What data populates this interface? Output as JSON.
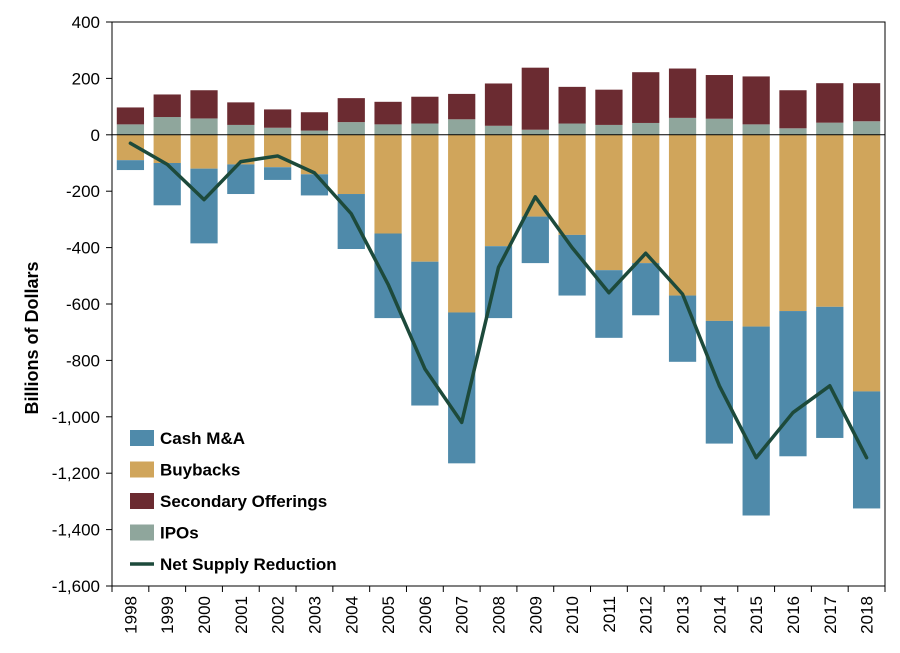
{
  "chart_data": {
    "type": "bar",
    "stacked": true,
    "ylabel": "Billions of Dollars",
    "xlabel": "",
    "ylim": [
      -1600,
      400
    ],
    "y_ticks": [
      400,
      200,
      0,
      -200,
      -400,
      -600,
      -800,
      -1000,
      -1200,
      -1400,
      -1600
    ],
    "y_tick_labels": [
      "400",
      "200",
      "0",
      "-200",
      "-400",
      "-600",
      "-800",
      "-1,000",
      "-1,200",
      "-1,400",
      "-1,600"
    ],
    "categories": [
      "1998",
      "1999",
      "2000",
      "2001",
      "2002",
      "2003",
      "2004",
      "2005",
      "2006",
      "2007",
      "2008",
      "2009",
      "2010",
      "2011",
      "2012",
      "2013",
      "2014",
      "2015",
      "2016",
      "2017",
      "2018"
    ],
    "series": [
      {
        "name": "Cash M&A",
        "color": "#4f8aaa",
        "kind": "bar",
        "values": [
          -35,
          -150,
          -265,
          -105,
          -45,
          -75,
          -195,
          -300,
          -510,
          -535,
          -255,
          -165,
          -215,
          -240,
          -185,
          -235,
          -435,
          -670,
          -515,
          -465,
          -415
        ]
      },
      {
        "name": "Buybacks",
        "color": "#d0a55b",
        "kind": "bar",
        "values": [
          -90,
          -100,
          -120,
          -105,
          -115,
          -140,
          -210,
          -350,
          -450,
          -630,
          -395,
          -290,
          -355,
          -480,
          -455,
          -570,
          -660,
          -680,
          -625,
          -610,
          -910
        ]
      },
      {
        "name": "Secondary Offerings",
        "color": "#6b2b31",
        "kind": "bar",
        "values": [
          60,
          80,
          100,
          80,
          65,
          65,
          85,
          80,
          95,
          90,
          150,
          220,
          130,
          125,
          180,
          175,
          155,
          170,
          135,
          140,
          135
        ]
      },
      {
        "name": "IPOs",
        "color": "#8fa69c",
        "kind": "bar",
        "values": [
          37,
          63,
          58,
          35,
          25,
          15,
          45,
          37,
          40,
          55,
          32,
          18,
          40,
          35,
          42,
          60,
          57,
          37,
          23,
          43,
          48
        ]
      },
      {
        "name": "Net Supply Reduction",
        "color": "#1d4a3b",
        "kind": "line",
        "values": [
          -30,
          -105,
          -230,
          -95,
          -75,
          -135,
          -280,
          -530,
          -830,
          -1020,
          -470,
          -220,
          -400,
          -560,
          -420,
          -565,
          -890,
          -1145,
          -985,
          -890,
          -1145
        ]
      }
    ],
    "legend": {
      "position": "bottom-left",
      "items": [
        {
          "label": "Cash M&A",
          "color": "#4f8aaa",
          "shape": "box"
        },
        {
          "label": "Buybacks",
          "color": "#d0a55b",
          "shape": "box"
        },
        {
          "label": "Secondary Offerings",
          "color": "#6b2b31",
          "shape": "box"
        },
        {
          "label": "IPOs",
          "color": "#8fa69c",
          "shape": "box"
        },
        {
          "label": "Net Supply Reduction",
          "color": "#1d4a3b",
          "shape": "line"
        }
      ]
    },
    "grid": false
  }
}
